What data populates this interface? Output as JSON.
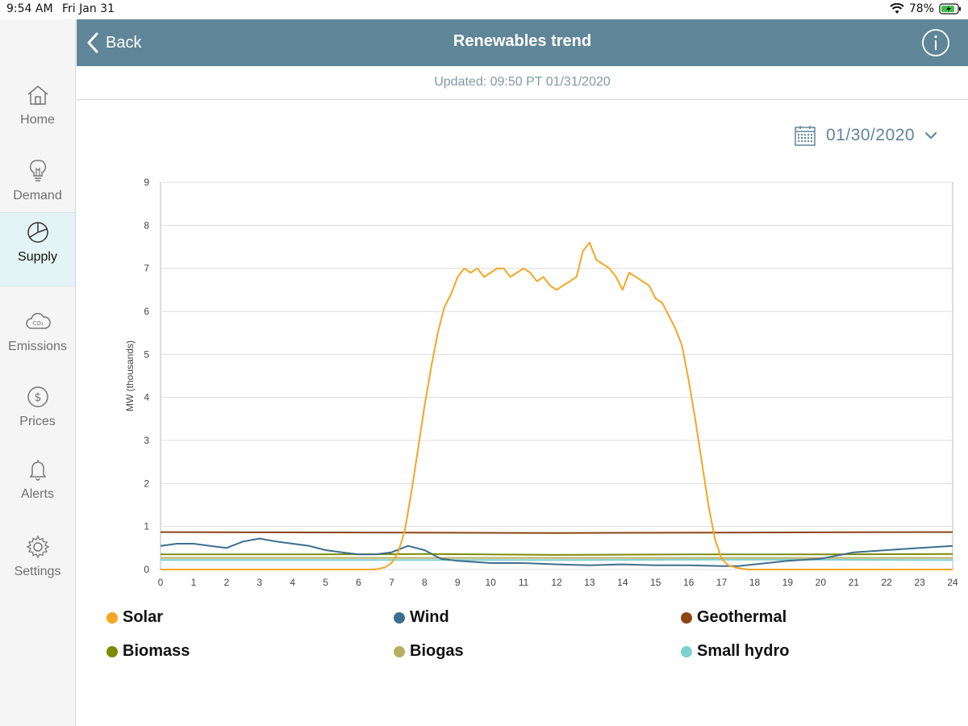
{
  "status": {
    "time": "9:54 AM",
    "date": "Fri Jan 31",
    "battery": "78%"
  },
  "sidebar": {
    "items": [
      {
        "label": "Home",
        "icon": "home-icon",
        "active": false
      },
      {
        "label": "Demand",
        "icon": "lightbulb-icon",
        "active": false
      },
      {
        "label": "Supply",
        "icon": "pie-chart-icon",
        "active": true
      },
      {
        "label": "Emissions",
        "icon": "co2-cloud-icon",
        "active": false
      },
      {
        "label": "Prices",
        "icon": "dollar-icon",
        "active": false
      },
      {
        "label": "Alerts",
        "icon": "bell-icon",
        "active": false
      },
      {
        "label": "Settings",
        "icon": "gear-icon",
        "active": false
      }
    ]
  },
  "header": {
    "back_label": "Back",
    "title": "Renewables trend",
    "info_icon": "info-icon"
  },
  "updated": "Updated: 09:50 PT 01/31/2020",
  "date_picker": {
    "value": "01/30/2020"
  },
  "colors": {
    "header": "#5f8698",
    "solar": "#f5a623",
    "wind": "#3e6e8e",
    "geothermal": "#8b4513",
    "biomass": "#7a8c00",
    "biogas": "#b5b060",
    "small_hydro": "#7ecfcf"
  },
  "chart_data": {
    "type": "line",
    "ylabel": "MW (thousands)",
    "xlabel": "",
    "xlim": [
      0,
      24
    ],
    "ylim": [
      0,
      9
    ],
    "x_ticks": [
      0,
      1,
      2,
      3,
      4,
      5,
      6,
      7,
      8,
      9,
      10,
      11,
      12,
      13,
      14,
      15,
      16,
      17,
      18,
      19,
      20,
      21,
      22,
      23,
      24
    ],
    "y_ticks": [
      0,
      1,
      2,
      3,
      4,
      5,
      6,
      7,
      8,
      9
    ],
    "grid": true,
    "legend_position": "bottom",
    "series": [
      {
        "name": "Solar",
        "color": "#f5a623",
        "x": [
          0,
          6.5,
          6.8,
          7.0,
          7.2,
          7.4,
          7.6,
          7.8,
          8.0,
          8.2,
          8.4,
          8.6,
          8.8,
          9.0,
          9.2,
          9.4,
          9.6,
          9.8,
          10.0,
          10.2,
          10.4,
          10.6,
          10.8,
          11.0,
          11.2,
          11.4,
          11.6,
          11.8,
          12.0,
          12.2,
          12.4,
          12.6,
          12.8,
          13.0,
          13.2,
          13.4,
          13.6,
          13.8,
          14.0,
          14.2,
          14.4,
          14.6,
          14.8,
          15.0,
          15.2,
          15.4,
          15.6,
          15.8,
          16.0,
          16.2,
          16.4,
          16.6,
          16.8,
          17.0,
          17.2,
          17.4,
          17.6,
          17.8,
          18.0,
          24
        ],
        "y": [
          0,
          0,
          0.05,
          0.15,
          0.4,
          0.9,
          1.8,
          2.8,
          3.8,
          4.7,
          5.5,
          6.1,
          6.4,
          6.8,
          7.0,
          6.9,
          7.0,
          6.8,
          6.9,
          7.0,
          7.0,
          6.8,
          6.9,
          7.0,
          6.9,
          6.7,
          6.8,
          6.6,
          6.5,
          6.6,
          6.7,
          6.8,
          7.4,
          7.6,
          7.2,
          7.1,
          7.0,
          6.8,
          6.5,
          6.9,
          6.8,
          6.7,
          6.6,
          6.3,
          6.2,
          5.9,
          5.6,
          5.2,
          4.4,
          3.5,
          2.5,
          1.5,
          0.7,
          0.25,
          0.1,
          0.05,
          0.02,
          0,
          0,
          0
        ]
      },
      {
        "name": "Wind",
        "color": "#3e6e8e",
        "x": [
          0,
          0.5,
          1,
          1.5,
          2,
          2.5,
          3,
          3.5,
          4,
          4.5,
          5,
          5.5,
          6,
          6.5,
          7,
          7.5,
          8,
          8.5,
          9,
          10,
          11,
          12,
          13,
          14,
          15,
          16,
          17,
          17.5,
          18,
          19,
          20,
          21,
          22,
          23,
          24
        ],
        "y": [
          0.55,
          0.6,
          0.6,
          0.55,
          0.5,
          0.65,
          0.72,
          0.65,
          0.6,
          0.55,
          0.45,
          0.4,
          0.35,
          0.35,
          0.4,
          0.55,
          0.45,
          0.25,
          0.2,
          0.15,
          0.15,
          0.12,
          0.1,
          0.12,
          0.1,
          0.1,
          0.08,
          0.08,
          0.12,
          0.2,
          0.25,
          0.4,
          0.45,
          0.5,
          0.55
        ]
      },
      {
        "name": "Geothermal",
        "color": "#8b4513",
        "x": [
          0,
          6,
          12,
          18,
          24
        ],
        "y": [
          0.87,
          0.86,
          0.85,
          0.86,
          0.87
        ]
      },
      {
        "name": "Biomass",
        "color": "#7a8c00",
        "x": [
          0,
          4,
          8,
          12,
          16,
          20,
          24
        ],
        "y": [
          0.35,
          0.35,
          0.36,
          0.34,
          0.35,
          0.35,
          0.36
        ]
      },
      {
        "name": "Biogas",
        "color": "#b5b060",
        "x": [
          0,
          6,
          12,
          18,
          24
        ],
        "y": [
          0.27,
          0.27,
          0.27,
          0.27,
          0.27
        ]
      },
      {
        "name": "Small hydro",
        "color": "#7ecfcf",
        "x": [
          0,
          6,
          12,
          18,
          24
        ],
        "y": [
          0.22,
          0.22,
          0.22,
          0.23,
          0.22
        ]
      }
    ]
  }
}
